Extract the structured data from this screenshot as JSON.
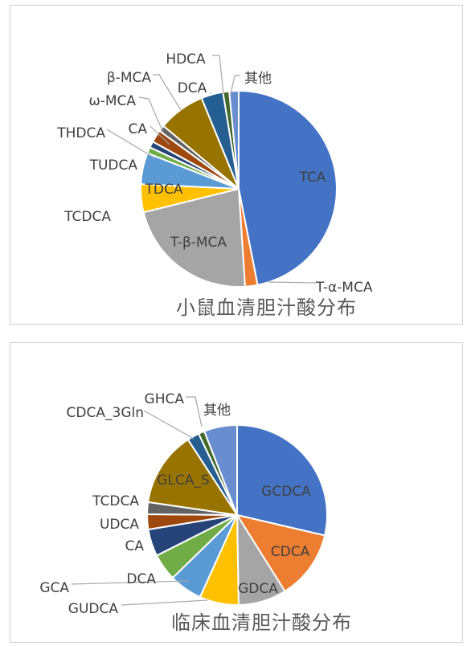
{
  "chart_data": [
    {
      "type": "pie",
      "title": "小鼠血清胆汁酸分布",
      "slices": [
        {
          "label": "TCA",
          "value": 45.5,
          "color": "#4472C4"
        },
        {
          "label": "T-α-MCA",
          "value": 2.0,
          "color": "#ED7D31"
        },
        {
          "label": "T-β-MCA",
          "value": 21.5,
          "color": "#A5A5A5"
        },
        {
          "label": "TCDCA",
          "value": 4.5,
          "color": "#FFC000"
        },
        {
          "label": "TDCA",
          "value": 5.0,
          "color": "#5B9BD5"
        },
        {
          "label": "TUDCA",
          "value": 1.0,
          "color": "#70AD47"
        },
        {
          "label": "THDCA",
          "value": 1.0,
          "color": "#264478"
        },
        {
          "label": "CA",
          "value": 2.0,
          "color": "#9E480E"
        },
        {
          "label": "ω-MCA",
          "value": 1.0,
          "color": "#636363"
        },
        {
          "label": "β-MCA",
          "value": 7.5,
          "color": "#997300"
        },
        {
          "label": "DCA",
          "value": 3.5,
          "color": "#255E91"
        },
        {
          "label": "HDCA",
          "value": 1.0,
          "color": "#43682B"
        },
        {
          "label": "其他",
          "value": 1.5,
          "color": "#698ED0"
        }
      ]
    },
    {
      "type": "pie",
      "title": "临床血清胆汁酸分布",
      "slices": [
        {
          "label": "GCDCA",
          "value": 26.5,
          "color": "#4472C4"
        },
        {
          "label": "CDCA",
          "value": 11.5,
          "color": "#ED7D31"
        },
        {
          "label": "GDCA",
          "value": 8.0,
          "color": "#A5A5A5"
        },
        {
          "label": "GUDCA",
          "value": 6.5,
          "color": "#FFC000"
        },
        {
          "label": "GCA",
          "value": 5.5,
          "color": "#5B9BD5"
        },
        {
          "label": "DCA",
          "value": 4.5,
          "color": "#70AD47"
        },
        {
          "label": "CA",
          "value": 4.5,
          "color": "#264478"
        },
        {
          "label": "UDCA",
          "value": 2.5,
          "color": "#9E480E"
        },
        {
          "label": "TCDCA",
          "value": 2.0,
          "color": "#636363"
        },
        {
          "label": "GLCA_S",
          "value": 12.5,
          "color": "#997300"
        },
        {
          "label": "CDCA_3Gln",
          "value": 2.0,
          "color": "#255E91"
        },
        {
          "label": "GHCA",
          "value": 1.0,
          "color": "#43682B"
        },
        {
          "label": "其他",
          "value": 5.5,
          "color": "#698ED0"
        }
      ]
    }
  ]
}
